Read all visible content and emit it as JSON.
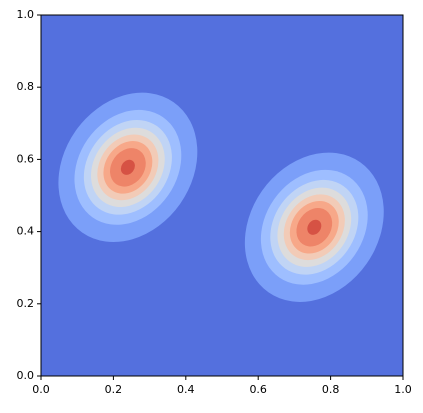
{
  "chart_data": {
    "type": "contour",
    "xlim": [
      0,
      1
    ],
    "ylim": [
      0,
      1
    ],
    "xticks": [
      {
        "value": 0,
        "label": "0.0"
      },
      {
        "value": 0.2,
        "label": "0.2"
      },
      {
        "value": 0.4,
        "label": "0.4"
      },
      {
        "value": 0.6,
        "label": "0.6"
      },
      {
        "value": 0.8,
        "label": "0.8"
      },
      {
        "value": 1,
        "label": "1.0"
      }
    ],
    "yticks": [
      {
        "value": 0,
        "label": "0.0"
      },
      {
        "value": 0.2,
        "label": "0.2"
      },
      {
        "value": 0.4,
        "label": "0.4"
      },
      {
        "value": 0.6,
        "label": "0.6"
      },
      {
        "value": 0.8,
        "label": "0.8"
      },
      {
        "value": 1,
        "label": "1.0"
      }
    ],
    "background_color": "#5470de",
    "levels": [
      0.05,
      0.17,
      0.3,
      0.43,
      0.56,
      0.69,
      0.82,
      0.97
    ],
    "level_colors": [
      "#7b9ff9",
      "#9ebeff",
      "#c0d4f5",
      "#dddcdc",
      "#f2cbb7",
      "#f7a889",
      "#ee8468",
      "#d65244"
    ],
    "peaks": [
      {
        "x": 0.24,
        "y": 0.578,
        "sigma_major": 0.09,
        "sigma_minor": 0.072,
        "angle": 55
      },
      {
        "x": 0.755,
        "y": 0.412,
        "sigma_major": 0.09,
        "sigma_minor": 0.072,
        "angle": 55
      }
    ]
  }
}
